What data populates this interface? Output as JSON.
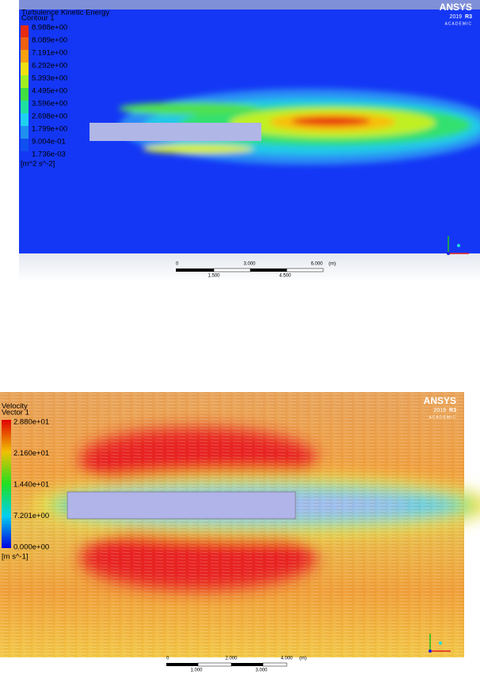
{
  "panels": [
    {
      "legend": {
        "title": "Turbulence Kinetic Energy",
        "subtitle": "Contour 1",
        "labels": [
          "8.988e+00",
          "8.089e+00",
          "7.191e+00",
          "6.292e+00",
          "5.393e+00",
          "4.495e+00",
          "3.596e+00",
          "2.698e+00",
          "1.799e+00",
          "9.004e-01",
          "1.736e-03"
        ],
        "unit": "[m^2 s^-2]"
      },
      "logo": {
        "brand": "ANSYS",
        "version": "2019",
        "release": "R3",
        "edition": "ACADEMIC"
      },
      "scale": {
        "top": [
          "0",
          "3.000",
          "6.000"
        ],
        "unit": "(m)",
        "bottom": [
          "1.500",
          "4.500"
        ]
      }
    },
    {
      "legend": {
        "title": "Velocity",
        "subtitle": "Vector 1",
        "labels": [
          "2.880e+01",
          "2.160e+01",
          "1.440e+01",
          "7.201e+00",
          "0.000e+00"
        ],
        "unit": "[m s^-1]"
      },
      "logo": {
        "brand": "ANSYS",
        "version": "2019",
        "release": "R3",
        "edition": "ACADEMIC"
      },
      "scale": {
        "top": [
          "0",
          "2.000",
          "4.000"
        ],
        "unit": "(m)",
        "bottom": [
          "1.000",
          "3.000"
        ]
      }
    }
  ]
}
